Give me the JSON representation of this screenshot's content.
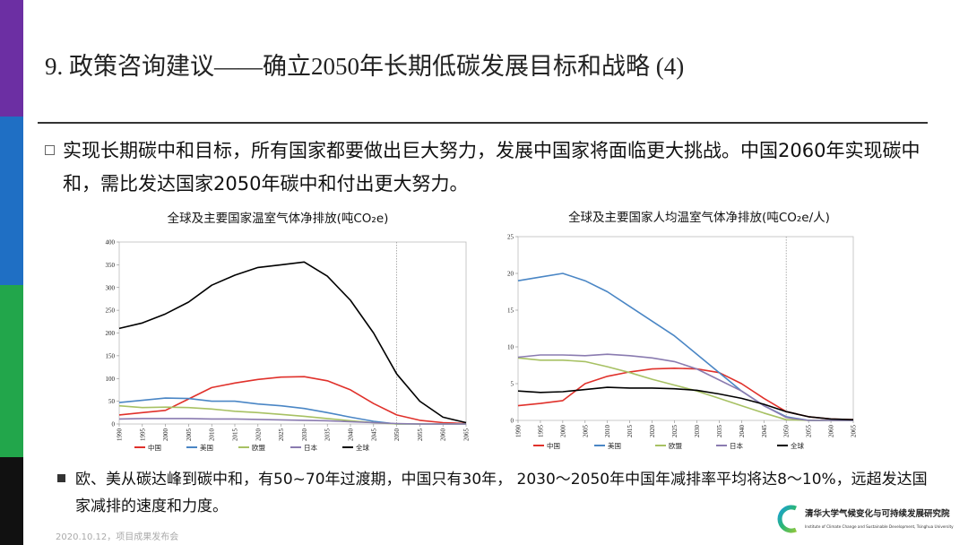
{
  "header": {
    "title": "9. 政策咨询建议——确立2050年长期低碳发展目标和战略 (4)"
  },
  "bullets": [
    "实现长期碳中和目标，所有国家都要做出巨大努力，发展中国家将面临更大挑战。中国2060年实现碳中和，需比发达国家2050年碳中和付出更大努力。",
    "欧、美从碳达峰到碳中和，有50~70年过渡期，中国只有30年， 2030～2050年中国年减排率平均将达8～10%，远超发达国家减排的速度和力度。"
  ],
  "chart_data": [
    {
      "type": "line",
      "title": "全球及主要国家温室气体净排放(吨CO₂e)",
      "x": [
        1990,
        1995,
        2000,
        2005,
        2010,
        2015,
        2020,
        2025,
        2030,
        2035,
        2040,
        2045,
        2050,
        2055,
        2060,
        2065
      ],
      "xlim": [
        1990,
        2065
      ],
      "xticks": [
        1990,
        1995,
        2000,
        2005,
        2010,
        2015,
        2020,
        2025,
        2030,
        2035,
        2040,
        2045,
        2050,
        2055,
        2060,
        2065
      ],
      "ylim": [
        0,
        400
      ],
      "yticks": [
        0,
        50,
        100,
        150,
        200,
        250,
        300,
        350,
        400
      ],
      "vline": 2050,
      "series": [
        {
          "name": "中国",
          "color": "#e0312b",
          "values": [
            20,
            25,
            30,
            55,
            80,
            90,
            98,
            103,
            104,
            95,
            75,
            45,
            20,
            8,
            3,
            1
          ]
        },
        {
          "name": "美国",
          "color": "#4a86c5",
          "values": [
            47,
            52,
            57,
            56,
            50,
            50,
            44,
            40,
            34,
            25,
            15,
            6,
            0,
            0,
            0,
            0
          ]
        },
        {
          "name": "欧盟",
          "color": "#a7c163",
          "values": [
            40,
            36,
            37,
            36,
            33,
            28,
            25,
            21,
            17,
            12,
            7,
            3,
            0,
            0,
            0,
            0
          ]
        },
        {
          "name": "日本",
          "color": "#8a7bb0",
          "values": [
            11,
            12,
            12,
            12,
            11,
            11,
            10,
            9,
            8,
            7,
            5,
            3,
            1,
            0,
            0,
            0
          ]
        },
        {
          "name": "全球",
          "color": "#000000",
          "values": [
            210,
            222,
            242,
            268,
            305,
            327,
            344,
            350,
            356,
            325,
            272,
            200,
            110,
            50,
            15,
            3
          ]
        }
      ]
    },
    {
      "type": "line",
      "title": "全球及主要国家人均温室气体净排放(吨CO₂e/人)",
      "x": [
        1990,
        1995,
        2000,
        2005,
        2010,
        2015,
        2020,
        2025,
        2030,
        2035,
        2040,
        2045,
        2050,
        2055,
        2060,
        2065
      ],
      "xlim": [
        1990,
        2065
      ],
      "xticks": [
        1990,
        1995,
        2000,
        2005,
        2010,
        2015,
        2020,
        2025,
        2030,
        2035,
        2040,
        2045,
        2050,
        2055,
        2060,
        2065
      ],
      "ylim": [
        0,
        25
      ],
      "yticks": [
        0,
        5,
        10,
        15,
        20,
        25
      ],
      "vline": 2050,
      "series": [
        {
          "name": "中国",
          "color": "#e0312b",
          "values": [
            2,
            2.3,
            2.7,
            5,
            6,
            6.6,
            7,
            7.1,
            7,
            6.5,
            5,
            3,
            1.2,
            0.5,
            0.2,
            0.1
          ]
        },
        {
          "name": "美国",
          "color": "#4a86c5",
          "values": [
            19,
            19.5,
            20,
            19,
            17.5,
            15.5,
            13.5,
            11.5,
            9,
            6.5,
            4,
            2,
            0.5,
            0,
            0,
            0
          ]
        },
        {
          "name": "欧盟",
          "color": "#a7c163",
          "values": [
            8.5,
            8.2,
            8.2,
            8,
            7.3,
            6.5,
            5.6,
            4.8,
            4,
            3,
            2,
            1,
            0.1,
            0,
            0,
            0
          ]
        },
        {
          "name": "日本",
          "color": "#8a7bb0",
          "values": [
            8.6,
            8.9,
            8.9,
            8.8,
            9,
            8.8,
            8.5,
            8,
            7,
            5.5,
            4,
            2,
            0.4,
            0,
            0,
            0
          ]
        },
        {
          "name": "全球",
          "color": "#000000",
          "values": [
            4,
            3.8,
            3.9,
            4.2,
            4.5,
            4.4,
            4.4,
            4.3,
            4.1,
            3.6,
            3,
            2.2,
            1.2,
            0.5,
            0.2,
            0.1
          ]
        }
      ]
    }
  ],
  "footer": {
    "date": "2020.10.12，项目成果发布会",
    "logo_cn": "清华大学气候变化与可持续发展研究院",
    "logo_en": "Institute of Climate Change and Sustainable Development, Tsinghua University"
  }
}
